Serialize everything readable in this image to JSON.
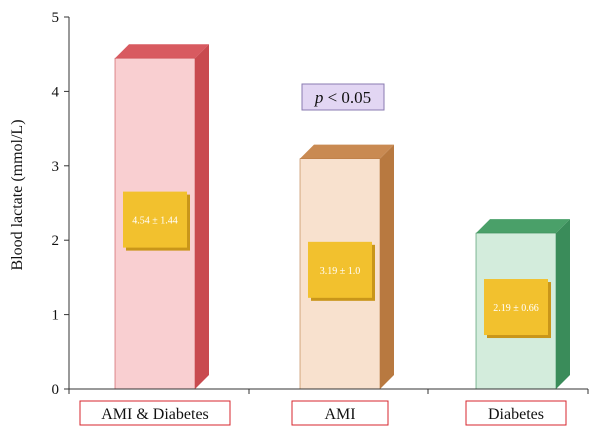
{
  "chart_data": {
    "type": "bar",
    "ylabel": "Blood lactate (mmol/L)",
    "ylim": [
      0,
      5
    ],
    "yticks": [
      0,
      1,
      2,
      3,
      4,
      5
    ],
    "grid": false,
    "categories": [
      "AMI & Diabetes",
      "AMI",
      "Diabetes"
    ],
    "values": [
      4.54,
      3.19,
      2.19
    ],
    "labels": [
      "4.54 ± 1.44",
      "3.19 ± 1.0",
      "2.19 ± 0.66"
    ],
    "colors": [
      {
        "front": "#f9cfd1",
        "side": "#c94a4f",
        "top": "#d85a60"
      },
      {
        "front": "#f8e1ce",
        "side": "#b87940",
        "top": "#c98a52"
      },
      {
        "front": "#d3ecdc",
        "side": "#3a8c5a",
        "top": "#4aa069"
      }
    ],
    "label_box_color": "#f2c12e",
    "annotation": {
      "p_symbol": "p",
      "text": " < 0.05"
    }
  }
}
